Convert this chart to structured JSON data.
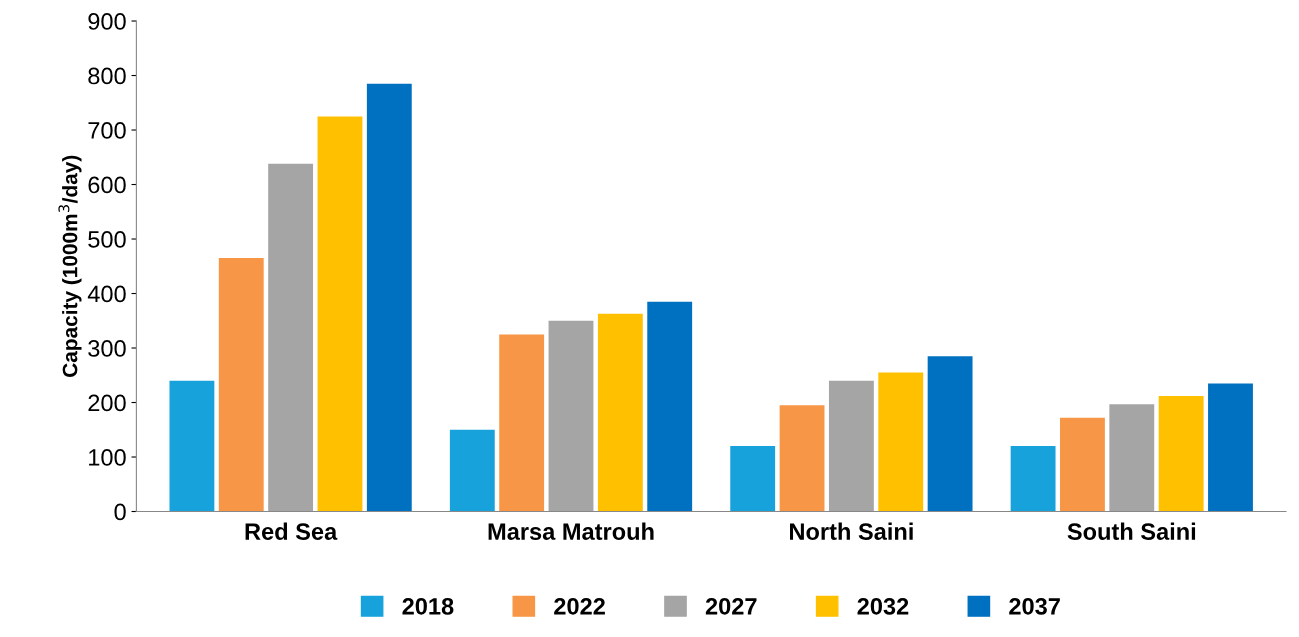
{
  "chart_data": {
    "type": "bar",
    "ylabel": "Capacity (1000m$^{3}$/day)",
    "categories": [
      "Red Sea",
      "Marsa Matrouh",
      "North Saini",
      "South Saini"
    ],
    "series": [
      {
        "name": "2018",
        "color": "#17a2dc",
        "values": [
          240,
          150,
          120,
          120
        ]
      },
      {
        "name": "2022",
        "color": "#f79646",
        "values": [
          465,
          325,
          195,
          172
        ]
      },
      {
        "name": "2027",
        "color": "#a5a5a5",
        "values": [
          638,
          350,
          240,
          197
        ]
      },
      {
        "name": "2032",
        "color": "#ffc000",
        "values": [
          725,
          363,
          255,
          212
        ]
      },
      {
        "name": "2037",
        "color": "#0070c0",
        "values": [
          785,
          385,
          285,
          235
        ]
      }
    ],
    "ylim": [
      0,
      900
    ],
    "yticks": [
      0,
      100,
      200,
      300,
      400,
      500,
      600,
      700,
      800,
      900
    ],
    "grid": false,
    "legend": "bottom"
  }
}
